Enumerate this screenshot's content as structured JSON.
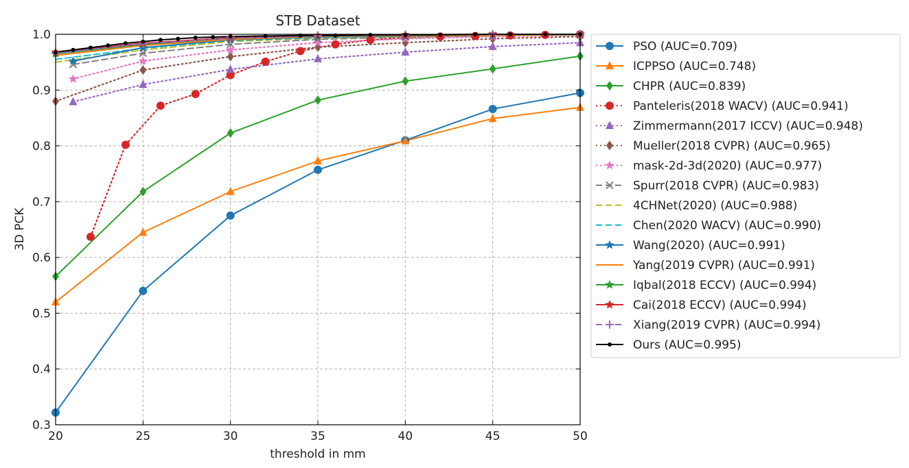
{
  "chart_data": {
    "type": "line",
    "title": "STB Dataset",
    "xlabel": "threshold in mm",
    "ylabel": "3D PCK",
    "xlim": [
      20,
      50
    ],
    "ylim": [
      0.3,
      1.0
    ],
    "xticks": [
      "20",
      "25",
      "30",
      "35",
      "40",
      "45",
      "50"
    ],
    "yticks": [
      "0.3",
      "0.4",
      "0.5",
      "0.6",
      "0.7",
      "0.8",
      "0.9",
      "1.0"
    ],
    "grid": true,
    "legend_position": "outside-right",
    "series": [
      {
        "name": "PSO (AUC=0.709)",
        "color": "#1f77b4",
        "style": "solid",
        "marker": "circle",
        "x": [
          20,
          25,
          30,
          35,
          40,
          45,
          50
        ],
        "y": [
          0.322,
          0.54,
          0.675,
          0.757,
          0.81,
          0.866,
          0.895
        ]
      },
      {
        "name": "ICPPSO (AUC=0.748)",
        "color": "#ff7f0e",
        "style": "solid",
        "marker": "triangle",
        "x": [
          20,
          25,
          30,
          35,
          40,
          45,
          50
        ],
        "y": [
          0.52,
          0.645,
          0.718,
          0.773,
          0.809,
          0.849,
          0.869
        ]
      },
      {
        "name": "CHPR (AUC=0.839)",
        "color": "#2ca02c",
        "style": "solid",
        "marker": "diamond",
        "x": [
          20,
          25,
          30,
          35,
          40,
          45,
          50
        ],
        "y": [
          0.566,
          0.718,
          0.823,
          0.882,
          0.916,
          0.938,
          0.961
        ]
      },
      {
        "name": "Panteleris(2018 WACV) (AUC=0.941)",
        "color": "#d62728",
        "style": "dotted",
        "marker": "circle",
        "x": [
          22,
          24,
          26,
          28,
          30,
          32,
          34,
          36,
          38,
          40,
          42,
          44,
          46,
          48,
          50
        ],
        "y": [
          0.637,
          0.802,
          0.872,
          0.893,
          0.927,
          0.951,
          0.97,
          0.982,
          0.99,
          0.994,
          0.996,
          0.997,
          0.998,
          0.999,
          1.0
        ]
      },
      {
        "name": "Zimmermann(2017 ICCV) (AUC=0.948)",
        "color": "#9467bd",
        "style": "dotted",
        "marker": "triangle",
        "x": [
          21,
          25,
          30,
          35,
          40,
          45,
          50
        ],
        "y": [
          0.879,
          0.91,
          0.937,
          0.956,
          0.968,
          0.978,
          0.985
        ]
      },
      {
        "name": "Mueller(2018 CVPR) (AUC=0.965)",
        "color": "#8c564b",
        "style": "dotted",
        "marker": "diamond",
        "x": [
          20,
          25,
          30,
          35,
          40,
          45,
          50
        ],
        "y": [
          0.88,
          0.936,
          0.96,
          0.977,
          0.985,
          0.992,
          0.996
        ]
      },
      {
        "name": "mask-2d-3d(2020) (AUC=0.977)",
        "color": "#e377c2",
        "style": "dotted",
        "marker": "star",
        "x": [
          21,
          25,
          30,
          35,
          40,
          45,
          50
        ],
        "y": [
          0.92,
          0.952,
          0.972,
          0.985,
          0.992,
          0.996,
          0.998
        ]
      },
      {
        "name": "Spurr(2018 CVPR) (AUC=0.983)",
        "color": "#7f7f7f",
        "style": "dashed",
        "marker": "x",
        "x": [
          21,
          25,
          30,
          35,
          40,
          45,
          50
        ],
        "y": [
          0.946,
          0.966,
          0.982,
          0.991,
          0.995,
          0.998,
          0.999
        ]
      },
      {
        "name": "4CHNet(2020) (AUC=0.988)",
        "color": "#bcbd22",
        "style": "dashed",
        "marker": "none",
        "x": [
          20,
          25,
          30,
          35,
          40,
          45,
          50
        ],
        "y": [
          0.95,
          0.972,
          0.987,
          0.993,
          0.996,
          0.998,
          0.999
        ]
      },
      {
        "name": "Chen(2020 WACV) (AUC=0.990)",
        "color": "#17becf",
        "style": "dashed",
        "marker": "none",
        "x": [
          20,
          25,
          30,
          35,
          40,
          45,
          50
        ],
        "y": [
          0.955,
          0.975,
          0.989,
          0.994,
          0.997,
          0.999,
          1.0
        ]
      },
      {
        "name": "Wang(2020) (AUC=0.991)",
        "color": "#1f77b4",
        "style": "solid",
        "marker": "star",
        "x": [
          21,
          25,
          30,
          35,
          40,
          45,
          50
        ],
        "y": [
          0.952,
          0.976,
          0.99,
          0.995,
          0.997,
          0.999,
          1.0
        ]
      },
      {
        "name": "Yang(2019 CVPR) (AUC=0.991)",
        "color": "#ff7f0e",
        "style": "solid",
        "marker": "none",
        "x": [
          20,
          25,
          30,
          35,
          40,
          45,
          50
        ],
        "y": [
          0.962,
          0.98,
          0.991,
          0.996,
          0.998,
          0.999,
          1.0
        ]
      },
      {
        "name": "Iqbal(2018 ECCV) (AUC=0.994)",
        "color": "#2ca02c",
        "style": "solid",
        "marker": "star",
        "x": [
          20,
          25,
          30,
          35,
          40,
          45,
          50
        ],
        "y": [
          0.965,
          0.982,
          0.993,
          0.997,
          0.999,
          1.0,
          1.0
        ]
      },
      {
        "name": "Cai(2018 ECCV) (AUC=0.994)",
        "color": "#d62728",
        "style": "solid",
        "marker": "star",
        "x": [
          20,
          25,
          30,
          35,
          40,
          45,
          50
        ],
        "y": [
          0.968,
          0.984,
          0.994,
          0.998,
          0.999,
          1.0,
          1.0
        ]
      },
      {
        "name": "Xiang(2019 CVPR) (AUC=0.994)",
        "color": "#9467bd",
        "style": "dashed",
        "marker": "plus",
        "x": [
          20,
          25,
          30,
          35,
          40,
          45,
          50
        ],
        "y": [
          0.966,
          0.983,
          0.993,
          0.997,
          0.999,
          1.0,
          1.0
        ]
      },
      {
        "name": "Ours (AUC=0.995)",
        "color": "#000000",
        "style": "solid",
        "marker": "dot",
        "x": [
          20,
          21,
          22,
          23,
          24,
          25,
          26,
          27,
          28,
          29,
          30,
          32,
          34,
          36,
          38,
          40,
          42,
          44,
          46,
          48,
          50
        ],
        "y": [
          0.968,
          0.972,
          0.976,
          0.98,
          0.984,
          0.987,
          0.99,
          0.992,
          0.994,
          0.995,
          0.996,
          0.997,
          0.998,
          0.998,
          0.999,
          0.999,
          0.999,
          1.0,
          1.0,
          1.0,
          1.0
        ]
      }
    ]
  }
}
